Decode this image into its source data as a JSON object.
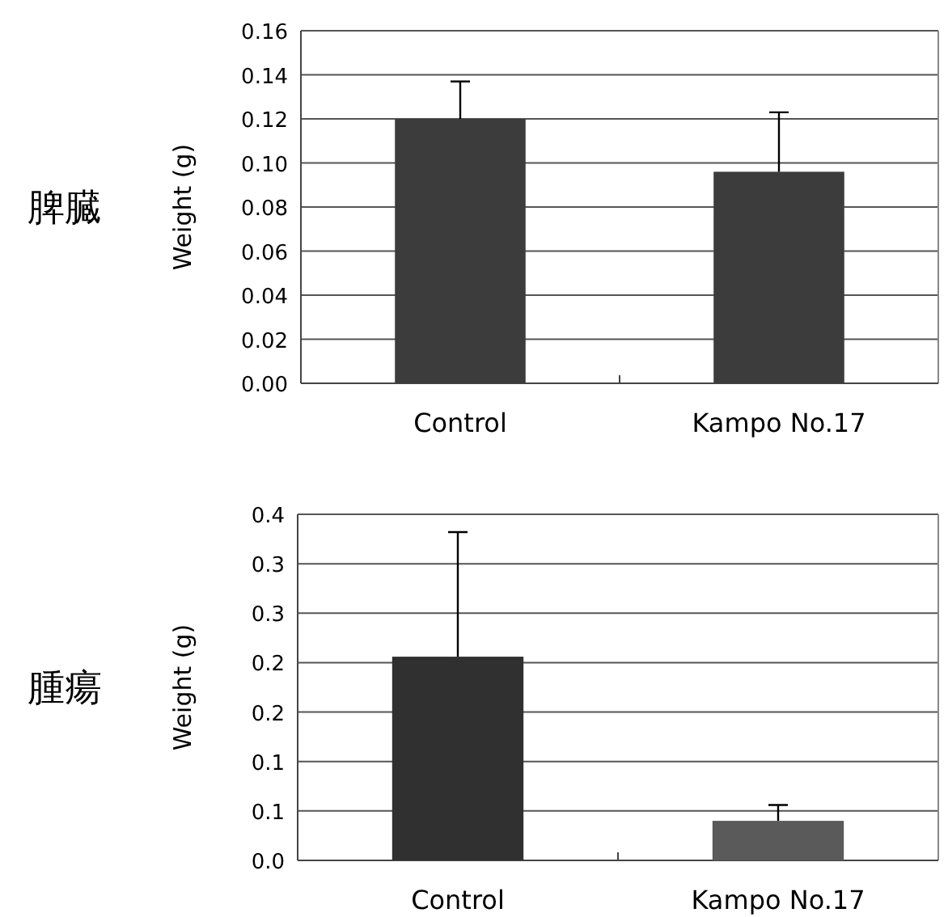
{
  "chart_data": [
    {
      "type": "bar",
      "title": "脾臓",
      "ylabel": "Weight (g)",
      "categories": [
        "Control",
        "Kampo No.17"
      ],
      "values": [
        0.12,
        0.096
      ],
      "errors": [
        0.017,
        0.027
      ],
      "colors": [
        "#3c3c3c",
        "#3c3c3c"
      ],
      "ylim": [
        0,
        0.16
      ],
      "yticks": [
        {
          "value": 0,
          "label": "0.00"
        },
        0.02,
        0.04,
        0.06,
        0.08,
        {
          "value": 0.1,
          "label": "0.10"
        },
        0.12,
        0.14,
        0.16
      ],
      "grid": "y"
    },
    {
      "type": "bar",
      "title": "腫瘍",
      "ylabel": "Weight (g)",
      "categories": [
        "Control",
        "Kampo No.17"
      ],
      "values": [
        0.206,
        0.04
      ],
      "errors": [
        0.126,
        0.016
      ],
      "colors": [
        "#303030",
        "#5a5a5a"
      ],
      "ylim": [
        0,
        0.35
      ],
      "yticks": [
        {
          "value": 0,
          "label": "0.0"
        },
        {
          "value": 0.05,
          "label": "0.1"
        },
        0.1,
        {
          "value": 0.15,
          "label": "0.2"
        },
        0.2,
        {
          "value": 0.25,
          "label": "0.3"
        },
        0.3,
        {
          "value": 0.35,
          "label": "0.4"
        }
      ],
      "grid": "y"
    }
  ]
}
